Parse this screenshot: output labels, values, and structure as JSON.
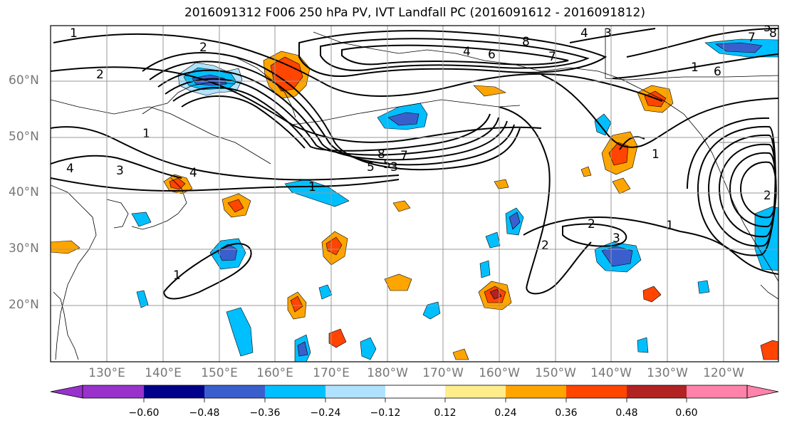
{
  "title": "2016091312 F006 250 hPa PV, IVT Landfall PC (2016091612 - 2016091812)",
  "map": {
    "lat_labels": [
      "60°N",
      "50°N",
      "40°N",
      "30°N",
      "20°N"
    ],
    "lon_labels": [
      "130°E",
      "140°E",
      "150°E",
      "160°E",
      "170°E",
      "180°W",
      "170°W",
      "160°W",
      "150°W",
      "140°W",
      "130°W",
      "120°W"
    ],
    "contour_labels": [
      "1",
      "2",
      "1",
      "4",
      "3",
      "4",
      "5",
      "7",
      "8",
      "8",
      "4",
      "3",
      "7",
      "6",
      "5",
      "1",
      "2",
      "3",
      "4",
      "5",
      "6",
      "7",
      "8",
      "1",
      "2",
      "3",
      "1",
      "1",
      "2",
      "1",
      "2"
    ],
    "fill_colors": {
      "neg_060": "#9932cc",
      "neg_048": "#00008b",
      "neg_036": "#3a5fcd",
      "neg_024": "#00bfff",
      "neg_012": "#b0e2ff",
      "neutral": "#ffffff",
      "pos_012": "#ffec8b",
      "pos_024": "#ffa500",
      "pos_036": "#ff4500",
      "pos_048": "#b22222",
      "pos_060": "#ff82ab"
    }
  },
  "colorbar": {
    "ticks": [
      "−0.60",
      "−0.48",
      "−0.36",
      "−0.24",
      "−0.12",
      "0.12",
      "0.24",
      "0.36",
      "0.48",
      "0.60"
    ],
    "colors": [
      "#9932cc",
      "#00008b",
      "#3a5fcd",
      "#00bfff",
      "#b0e2ff",
      "#ffffff",
      "#ffec8b",
      "#ffa500",
      "#ff4500",
      "#b22222",
      "#ff82ab"
    ]
  }
}
